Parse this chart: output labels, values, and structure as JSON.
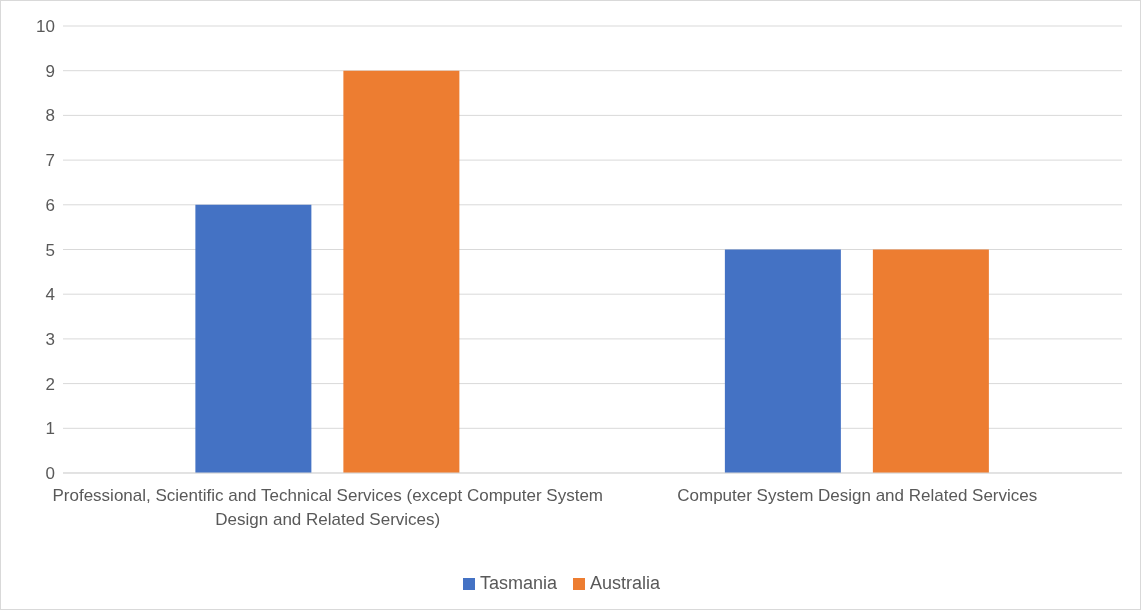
{
  "chart_data": {
    "type": "bar",
    "categories": [
      "Professional, Scientific and Technical Services (except Computer System Design and Related Services)",
      "Computer System Design and Related Services"
    ],
    "series": [
      {
        "name": "Tasmania",
        "color": "#4472c4",
        "values": [
          6,
          5
        ]
      },
      {
        "name": "Australia",
        "color": "#ed7d31",
        "values": [
          9,
          5
        ]
      }
    ],
    "ylim": [
      0,
      10
    ],
    "yticks": [
      0,
      1,
      2,
      3,
      4,
      5,
      6,
      7,
      8,
      9,
      10
    ],
    "grid": "y",
    "legend": "bottom"
  }
}
